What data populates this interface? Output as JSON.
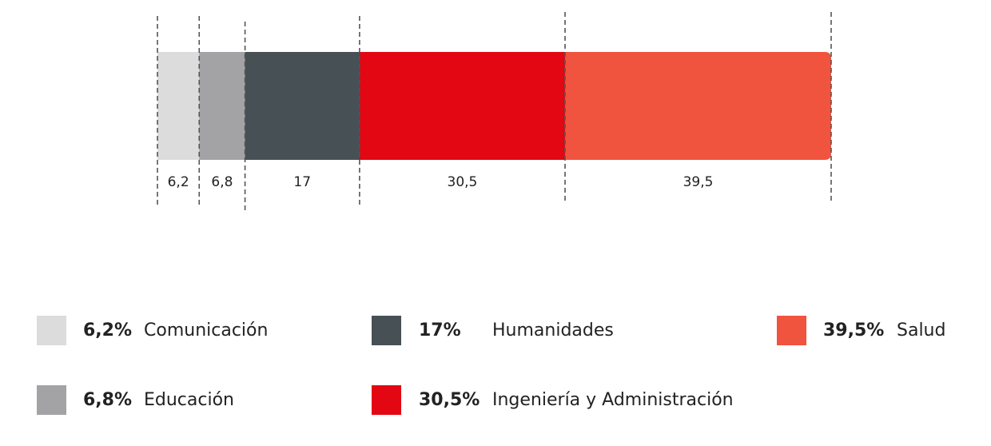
{
  "chart_data": {
    "type": "bar",
    "orientation": "horizontal-stacked",
    "unit": "%",
    "segments": [
      {
        "name": "Comunicación",
        "value": 6.2,
        "label": "6,2",
        "legend_pct": "6,2%",
        "color": "#dcdcdc"
      },
      {
        "name": "Educación",
        "value": 6.8,
        "label": "6,8",
        "legend_pct": "6,8%",
        "color": "#a3a3a5"
      },
      {
        "name": "Humanidades",
        "value": 17,
        "label": "17",
        "legend_pct": "17%",
        "color": "#465055"
      },
      {
        "name": "Ingeniería y Administración",
        "value": 30.5,
        "label": "30,5",
        "legend_pct": "30,5%",
        "color": "#e30613"
      },
      {
        "name": "Salud",
        "value": 39.5,
        "label": "39,5",
        "legend_pct": "39,5%",
        "color": "#f0533e"
      }
    ],
    "total": 100,
    "legend_position": "bottom"
  }
}
